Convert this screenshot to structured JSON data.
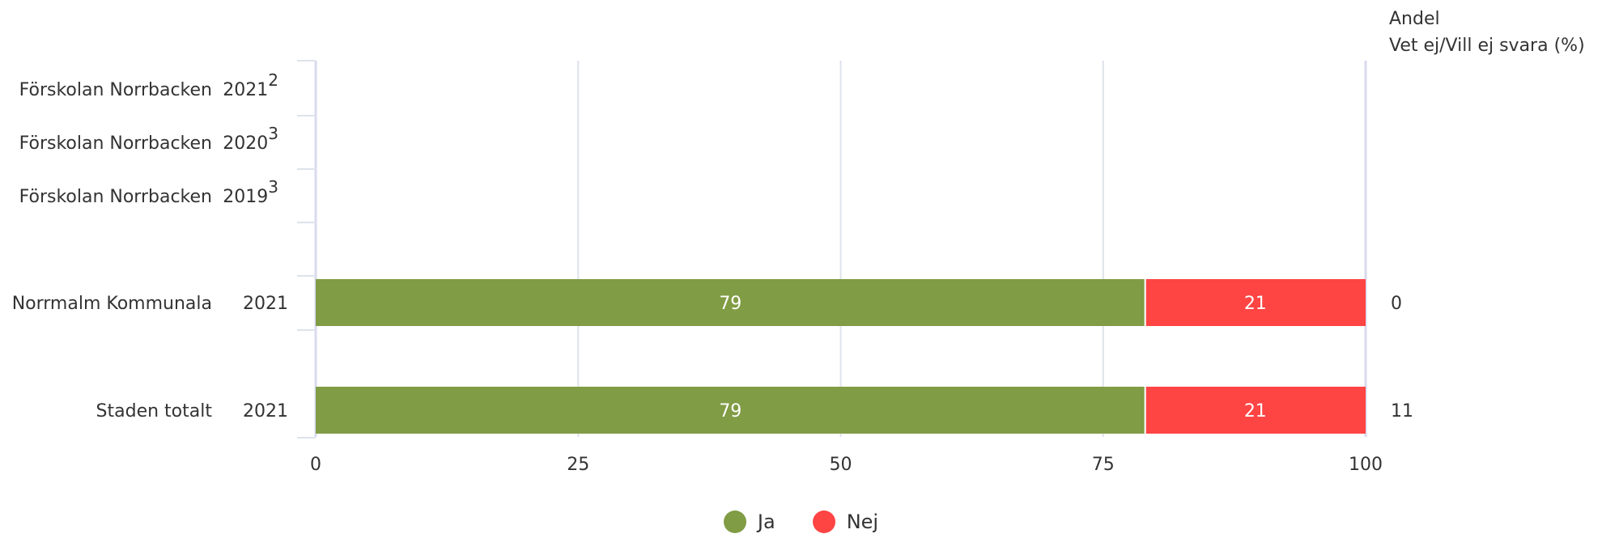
{
  "colors": {
    "ja": "#809c44",
    "nej": "#ff4444",
    "grid": "#dde3ec",
    "axis": "#d9d9ef"
  },
  "right_header": [
    "Andel",
    "Vet ej/Vill ej svara (%)"
  ],
  "chart_data": {
    "type": "bar",
    "orientation": "horizontal",
    "stacked": true,
    "xlim": [
      0,
      100
    ],
    "xticks": [
      "0",
      "25",
      "50",
      "75",
      "100"
    ],
    "rows": [
      {
        "name": "Förskolan Norrbacken",
        "year": "2021",
        "sup": "2",
        "ja": null,
        "nej": null,
        "vet_ej": null
      },
      {
        "name": "Förskolan Norrbacken",
        "year": "2020",
        "sup": "3",
        "ja": null,
        "nej": null,
        "vet_ej": null
      },
      {
        "name": "Förskolan Norrbacken",
        "year": "2019",
        "sup": "3",
        "ja": null,
        "nej": null,
        "vet_ej": null
      },
      {
        "name": "Norrmalm Kommunala",
        "year": "2021",
        "sup": "",
        "ja": 79,
        "nej": 21,
        "vet_ej": "0"
      },
      {
        "name": "Staden totalt",
        "year": "2021",
        "sup": "",
        "ja": 79,
        "nej": 21,
        "vet_ej": "11"
      }
    ],
    "series": [
      {
        "name": "Ja"
      },
      {
        "name": "Nej"
      }
    ],
    "legend_position": "bottom-center",
    "grid": true
  }
}
